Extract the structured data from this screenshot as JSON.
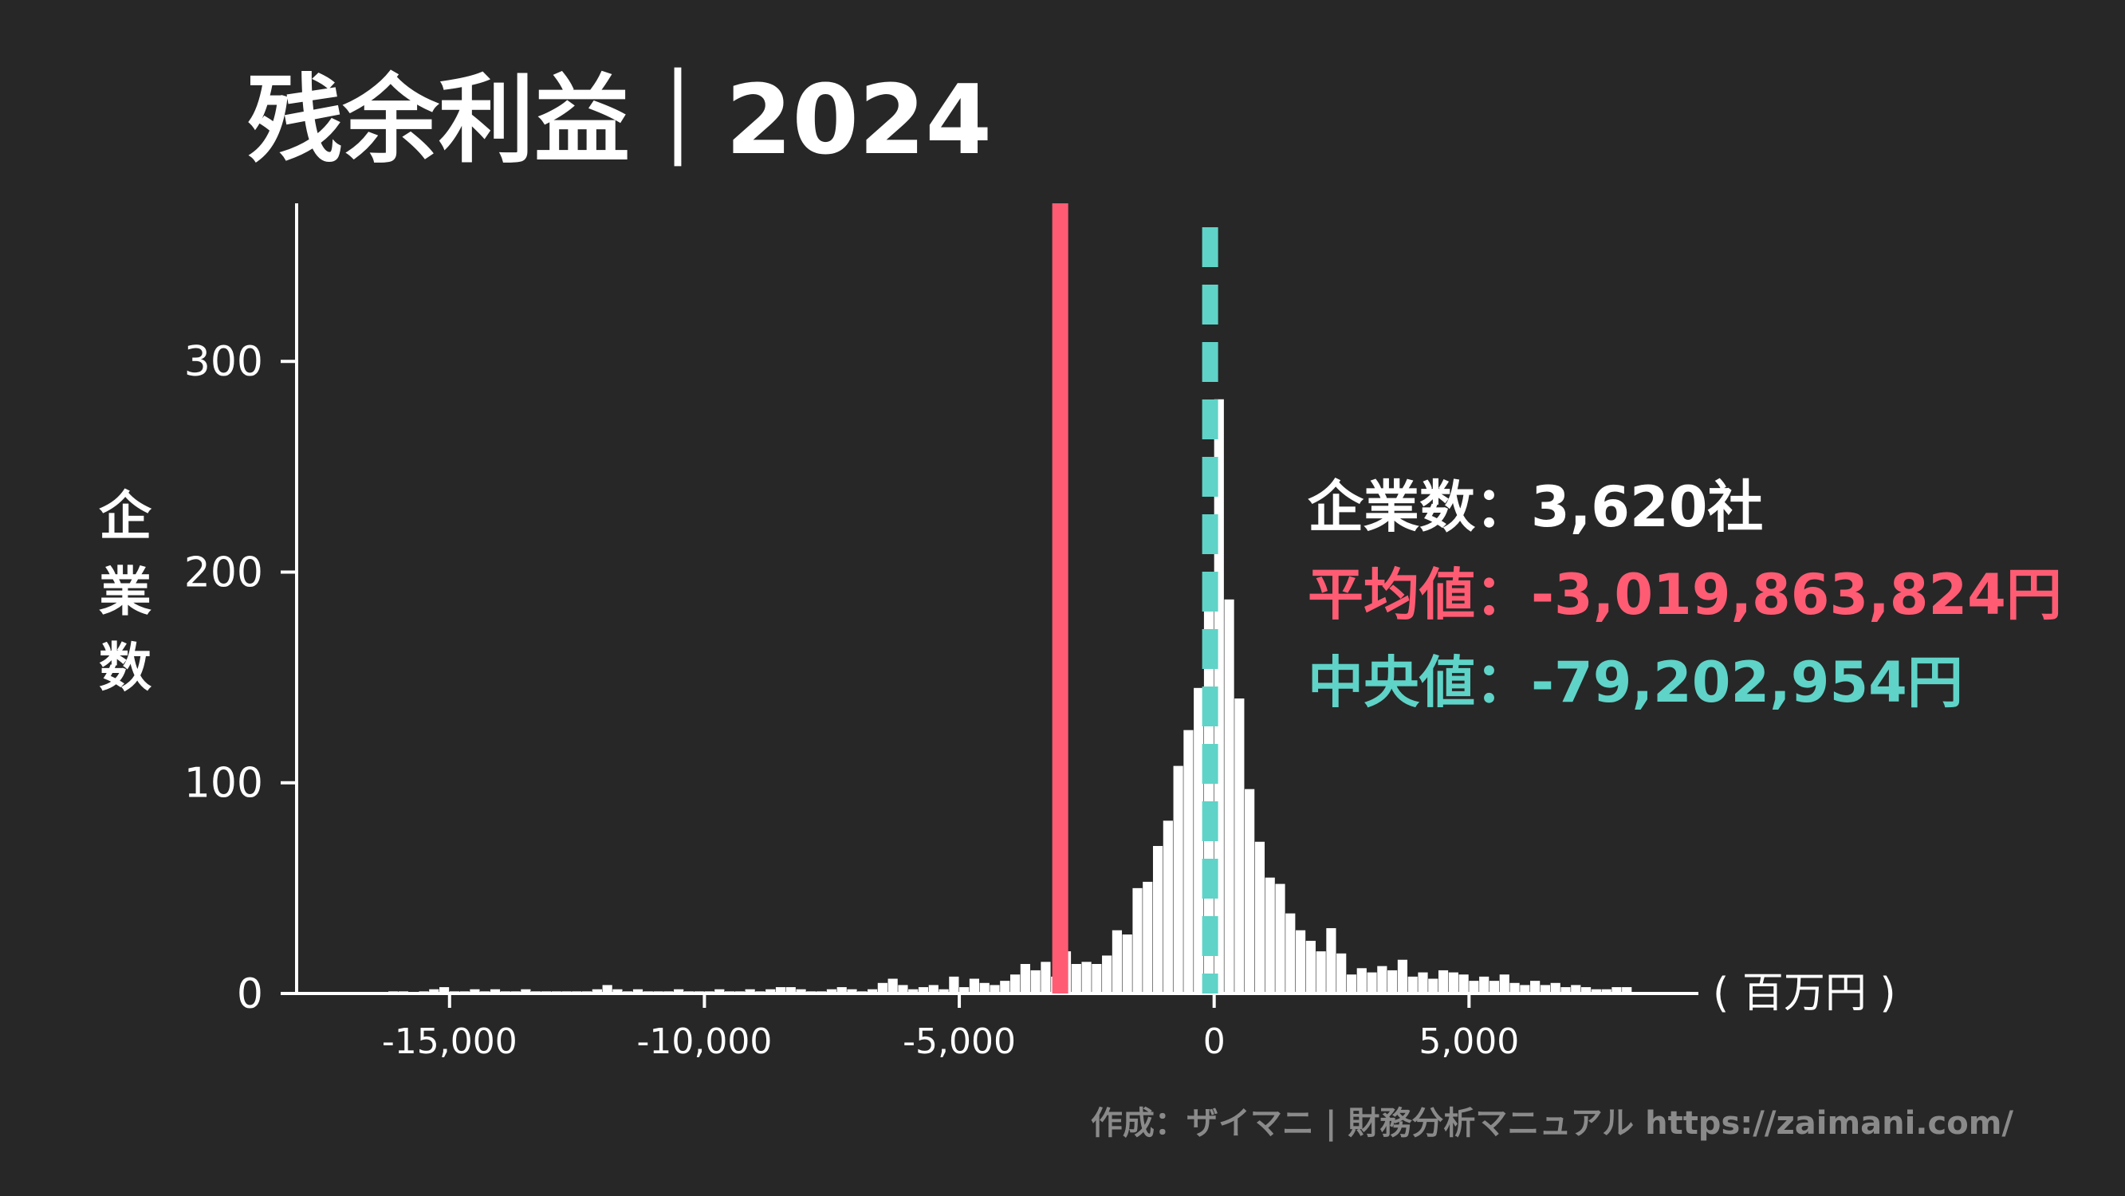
{
  "chart_data": {
    "type": "bar",
    "title": "残余利益｜2024",
    "ylabel": "企業数",
    "xlabel": "( 百万円 )",
    "unit": "百万円",
    "xlim": [
      -18000,
      9500
    ],
    "ylim": [
      0,
      375
    ],
    "xticks": [
      -15000,
      -10000,
      -5000,
      0,
      5000
    ],
    "xtick_labels": [
      "-15,000",
      "-10,000",
      "-5,000",
      "0",
      "5,000"
    ],
    "yticks": [
      0,
      100,
      200,
      300
    ],
    "ytick_labels": [
      "0",
      "100",
      "200",
      "300"
    ],
    "bin_width": 200,
    "bins": [
      {
        "x0": -16200,
        "count": 1
      },
      {
        "x0": -16000,
        "count": 1
      },
      {
        "x0": -15600,
        "count": 1
      },
      {
        "x0": -15400,
        "count": 2
      },
      {
        "x0": -15200,
        "count": 3
      },
      {
        "x0": -15000,
        "count": 1
      },
      {
        "x0": -14800,
        "count": 1
      },
      {
        "x0": -14600,
        "count": 2
      },
      {
        "x0": -14400,
        "count": 1
      },
      {
        "x0": -14200,
        "count": 2
      },
      {
        "x0": -14000,
        "count": 1
      },
      {
        "x0": -13800,
        "count": 1
      },
      {
        "x0": -13600,
        "count": 2
      },
      {
        "x0": -13400,
        "count": 1
      },
      {
        "x0": -13200,
        "count": 1
      },
      {
        "x0": -13000,
        "count": 1
      },
      {
        "x0": -12800,
        "count": 1
      },
      {
        "x0": -12600,
        "count": 1
      },
      {
        "x0": -12400,
        "count": 1
      },
      {
        "x0": -12200,
        "count": 2
      },
      {
        "x0": -12000,
        "count": 4
      },
      {
        "x0": -11800,
        "count": 2
      },
      {
        "x0": -11600,
        "count": 1
      },
      {
        "x0": -11400,
        "count": 2
      },
      {
        "x0": -11200,
        "count": 1
      },
      {
        "x0": -11000,
        "count": 1
      },
      {
        "x0": -10800,
        "count": 1
      },
      {
        "x0": -10600,
        "count": 2
      },
      {
        "x0": -10400,
        "count": 1
      },
      {
        "x0": -10200,
        "count": 1
      },
      {
        "x0": -10000,
        "count": 1
      },
      {
        "x0": -9800,
        "count": 2
      },
      {
        "x0": -9600,
        "count": 1
      },
      {
        "x0": -9400,
        "count": 1
      },
      {
        "x0": -9200,
        "count": 2
      },
      {
        "x0": -9000,
        "count": 1
      },
      {
        "x0": -8800,
        "count": 2
      },
      {
        "x0": -8600,
        "count": 3
      },
      {
        "x0": -8400,
        "count": 3
      },
      {
        "x0": -8200,
        "count": 2
      },
      {
        "x0": -8000,
        "count": 1
      },
      {
        "x0": -7800,
        "count": 1
      },
      {
        "x0": -7600,
        "count": 2
      },
      {
        "x0": -7400,
        "count": 3
      },
      {
        "x0": -7200,
        "count": 2
      },
      {
        "x0": -7000,
        "count": 1
      },
      {
        "x0": -6800,
        "count": 2
      },
      {
        "x0": -6600,
        "count": 5
      },
      {
        "x0": -6400,
        "count": 7
      },
      {
        "x0": -6200,
        "count": 4
      },
      {
        "x0": -6000,
        "count": 2
      },
      {
        "x0": -5800,
        "count": 3
      },
      {
        "x0": -5600,
        "count": 4
      },
      {
        "x0": -5400,
        "count": 2
      },
      {
        "x0": -5200,
        "count": 8
      },
      {
        "x0": -5000,
        "count": 3
      },
      {
        "x0": -4800,
        "count": 7
      },
      {
        "x0": -4600,
        "count": 5
      },
      {
        "x0": -4400,
        "count": 4
      },
      {
        "x0": -4200,
        "count": 6
      },
      {
        "x0": -4000,
        "count": 9
      },
      {
        "x0": -3800,
        "count": 14
      },
      {
        "x0": -3600,
        "count": 11
      },
      {
        "x0": -3400,
        "count": 15
      },
      {
        "x0": -3200,
        "count": 8
      },
      {
        "x0": -3000,
        "count": 20
      },
      {
        "x0": -2800,
        "count": 14
      },
      {
        "x0": -2600,
        "count": 15
      },
      {
        "x0": -2400,
        "count": 14
      },
      {
        "x0": -2200,
        "count": 18
      },
      {
        "x0": -2000,
        "count": 30
      },
      {
        "x0": -1800,
        "count": 28
      },
      {
        "x0": -1600,
        "count": 50
      },
      {
        "x0": -1400,
        "count": 53
      },
      {
        "x0": -1200,
        "count": 70
      },
      {
        "x0": -1000,
        "count": 82
      },
      {
        "x0": -800,
        "count": 108
      },
      {
        "x0": -600,
        "count": 125
      },
      {
        "x0": -400,
        "count": 145
      },
      {
        "x0": -200,
        "count": 200
      },
      {
        "x0": 0,
        "count": 282
      },
      {
        "x0": 200,
        "count": 187
      },
      {
        "x0": 400,
        "count": 140
      },
      {
        "x0": 600,
        "count": 97
      },
      {
        "x0": 800,
        "count": 72
      },
      {
        "x0": 1000,
        "count": 55
      },
      {
        "x0": 1200,
        "count": 52
      },
      {
        "x0": 1400,
        "count": 38
      },
      {
        "x0": 1600,
        "count": 30
      },
      {
        "x0": 1800,
        "count": 25
      },
      {
        "x0": 2000,
        "count": 20
      },
      {
        "x0": 2200,
        "count": 31
      },
      {
        "x0": 2400,
        "count": 19
      },
      {
        "x0": 2600,
        "count": 9
      },
      {
        "x0": 2800,
        "count": 12
      },
      {
        "x0": 3000,
        "count": 10
      },
      {
        "x0": 3200,
        "count": 13
      },
      {
        "x0": 3400,
        "count": 11
      },
      {
        "x0": 3600,
        "count": 16
      },
      {
        "x0": 3800,
        "count": 8
      },
      {
        "x0": 4000,
        "count": 10
      },
      {
        "x0": 4200,
        "count": 7
      },
      {
        "x0": 4400,
        "count": 11
      },
      {
        "x0": 4600,
        "count": 10
      },
      {
        "x0": 4800,
        "count": 9
      },
      {
        "x0": 5000,
        "count": 6
      },
      {
        "x0": 5200,
        "count": 8
      },
      {
        "x0": 5400,
        "count": 6
      },
      {
        "x0": 5600,
        "count": 9
      },
      {
        "x0": 5800,
        "count": 5
      },
      {
        "x0": 6000,
        "count": 4
      },
      {
        "x0": 6200,
        "count": 6
      },
      {
        "x0": 6400,
        "count": 4
      },
      {
        "x0": 6600,
        "count": 5
      },
      {
        "x0": 6800,
        "count": 3
      },
      {
        "x0": 7000,
        "count": 4
      },
      {
        "x0": 7200,
        "count": 3
      },
      {
        "x0": 7400,
        "count": 2
      },
      {
        "x0": 7600,
        "count": 2
      },
      {
        "x0": 7800,
        "count": 3
      },
      {
        "x0": 8000,
        "count": 3
      }
    ],
    "mean": -3019.863824,
    "median": -79.202954,
    "mean_color": "#ff5c74",
    "median_color": "#5fd3c7",
    "bar_color": "#ffffff",
    "background": "#272727"
  },
  "stats": {
    "count_label": "企業数：3,620社",
    "mean_label": "平均値：-3,019,863,824円",
    "median_label": "中央値：-79,202,954円"
  },
  "credit": "作成：ザイマニ | 財務分析マニュアル https://zaimani.com/"
}
